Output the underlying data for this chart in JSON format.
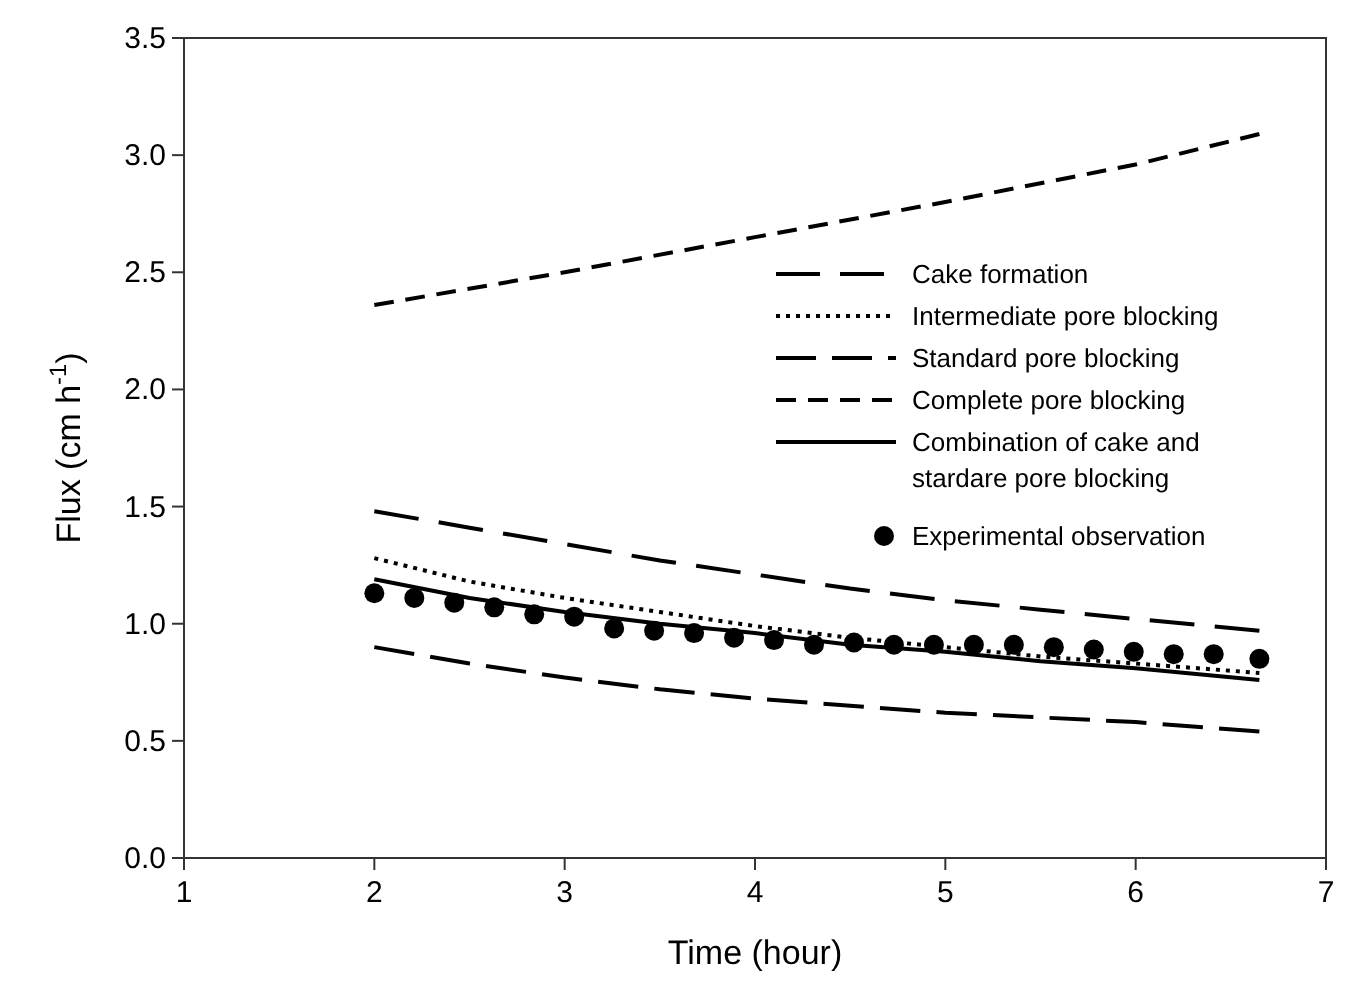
{
  "chart_data": {
    "type": "line",
    "xlabel": "Time (hour)",
    "ylabel": "Flux (cm h$^{-1}$)",
    "xlim": [
      1,
      7
    ],
    "xticks": [
      1,
      2,
      3,
      4,
      5,
      6,
      7
    ],
    "ylim": [
      0,
      3.5
    ],
    "yticks": [
      {
        "value": 0,
        "label": "0.0"
      },
      {
        "value": 0.5,
        "label": "0.5"
      },
      {
        "value": 1,
        "label": "1.0"
      },
      {
        "value": 1.5,
        "label": "1.5"
      },
      {
        "value": 2,
        "label": "2.0"
      },
      {
        "value": 2.5,
        "label": "2.5"
      },
      {
        "value": 3,
        "label": "3.0"
      },
      {
        "value": 3.5,
        "label": "3.5"
      }
    ],
    "grid": false,
    "legend": "right",
    "series": [
      {
        "name": "Cake formation",
        "color": "#000000",
        "line_style": "dashed",
        "marker": "none",
        "x": [
          2,
          2.5,
          3,
          3.5,
          4,
          4.5,
          5,
          5.5,
          6,
          6.65
        ],
        "values": [
          1.48,
          1.41,
          1.34,
          1.27,
          1.21,
          1.15,
          1.1,
          1.06,
          1.02,
          0.97
        ]
      },
      {
        "name": "Intermediate pore blocking",
        "color": "#000000",
        "line_style": "dotted",
        "marker": "none",
        "x": [
          2,
          2.5,
          3,
          3.5,
          4,
          4.5,
          5,
          5.5,
          6,
          6.65
        ],
        "values": [
          1.28,
          1.18,
          1.11,
          1.05,
          0.99,
          0.94,
          0.9,
          0.86,
          0.83,
          0.79
        ]
      },
      {
        "name": "Standard pore blocking",
        "color": "#000000",
        "line_style": "dashed",
        "marker": "none",
        "x": [
          2,
          2.5,
          3,
          3.5,
          4,
          4.5,
          5,
          5.5,
          6,
          6.65
        ],
        "values": [
          0.9,
          0.83,
          0.77,
          0.72,
          0.68,
          0.65,
          0.62,
          0.6,
          0.58,
          0.54
        ]
      },
      {
        "name": "Complete pore blocking",
        "color": "#000000",
        "line_style": "dashed",
        "marker": "none",
        "x": [
          2,
          3,
          4,
          5,
          6,
          6.65
        ],
        "values": [
          2.36,
          2.5,
          2.65,
          2.8,
          2.96,
          3.09
        ]
      },
      {
        "name": "Combination of cake and stardare pore blocking",
        "color": "#000000",
        "line_style": "solid",
        "marker": "none",
        "x": [
          2,
          2.5,
          3,
          3.5,
          4,
          4.5,
          5,
          5.5,
          6,
          6.65
        ],
        "values": [
          1.19,
          1.11,
          1.05,
          1.0,
          0.96,
          0.91,
          0.88,
          0.84,
          0.81,
          0.76
        ]
      },
      {
        "name": "Experimental observation",
        "type": "scatter",
        "color": "#000000",
        "marker": "circle",
        "x": [
          2,
          2.21,
          2.42,
          2.63,
          2.84,
          3.05,
          3.26,
          3.47,
          3.68,
          3.89,
          4.1,
          4.31,
          4.52,
          4.73,
          4.94,
          5.15,
          5.36,
          5.57,
          5.78,
          5.99,
          6.2,
          6.41,
          6.65
        ],
        "values": [
          1.13,
          1.11,
          1.09,
          1.07,
          1.04,
          1.03,
          0.98,
          0.97,
          0.96,
          0.94,
          0.93,
          0.91,
          0.92,
          0.91,
          0.91,
          0.91,
          0.91,
          0.9,
          0.89,
          0.88,
          0.87,
          0.87,
          0.85
        ]
      }
    ]
  }
}
